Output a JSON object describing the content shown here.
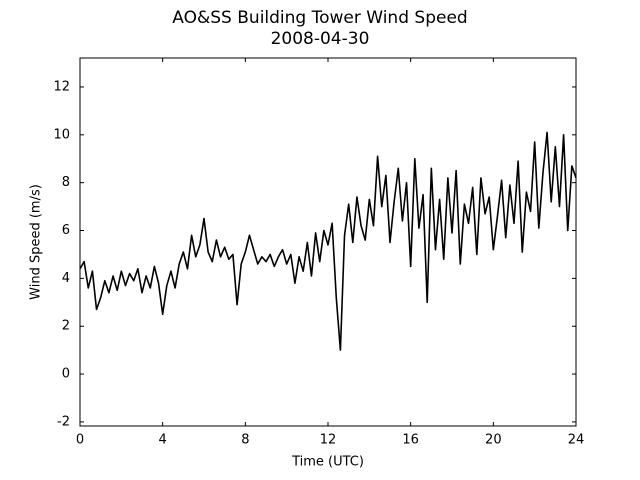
{
  "chart_data": {
    "type": "line",
    "title": "AO&SS Building Tower Wind Speed",
    "subtitle": "2008-04-30",
    "x_label": "Time (UTC)",
    "y_label": "Wind Speed (m/s)",
    "xlim": [
      0,
      24
    ],
    "xticks": [
      0,
      4,
      8,
      12,
      16,
      20,
      24
    ],
    "ylim": [
      -2.17,
      13.21
    ],
    "yticks": [
      -2,
      0,
      2,
      4,
      6,
      8,
      10,
      12
    ],
    "grid": false,
    "x": [
      0,
      0.2,
      0.4,
      0.6,
      0.8,
      1,
      1.2,
      1.4,
      1.6,
      1.8,
      2,
      2.2,
      2.4,
      2.6,
      2.8,
      3,
      3.2,
      3.4,
      3.6,
      3.8,
      4,
      4.2,
      4.4,
      4.6,
      4.8,
      5,
      5.2,
      5.4,
      5.6,
      5.8,
      6,
      6.2,
      6.4,
      6.6,
      6.8,
      7,
      7.2,
      7.4,
      7.6,
      7.8,
      8,
      8.2,
      8.4,
      8.6,
      8.8,
      9,
      9.2,
      9.4,
      9.6,
      9.8,
      10,
      10.2,
      10.4,
      10.6,
      10.8,
      11,
      11.2,
      11.4,
      11.6,
      11.8,
      12,
      12.2,
      12.4,
      12.6,
      12.8,
      13,
      13.2,
      13.4,
      13.6,
      13.8,
      14,
      14.2,
      14.4,
      14.6,
      14.8,
      15,
      15.2,
      15.4,
      15.6,
      15.8,
      16,
      16.2,
      16.4,
      16.6,
      16.8,
      17,
      17.2,
      17.4,
      17.6,
      17.8,
      18,
      18.2,
      18.4,
      18.6,
      18.8,
      19,
      19.2,
      19.4,
      19.6,
      19.8,
      20,
      20.2,
      20.4,
      20.6,
      20.8,
      21,
      21.2,
      21.4,
      21.6,
      21.8,
      22,
      22.2,
      22.4,
      22.6,
      22.8,
      23,
      23.2,
      23.4,
      23.6,
      23.8,
      24
    ],
    "series": [
      {
        "color": "#000000",
        "values": [
          4.4,
          4.7,
          3.6,
          4.3,
          2.7,
          3.2,
          3.9,
          3.4,
          4.1,
          3.5,
          4.3,
          3.7,
          4.2,
          3.9,
          4.4,
          3.4,
          4.1,
          3.6,
          4.5,
          3.8,
          2.5,
          3.7,
          4.3,
          3.6,
          4.6,
          5.1,
          4.4,
          5.8,
          4.9,
          5.4,
          6.5,
          5.1,
          4.7,
          5.6,
          4.9,
          5.3,
          4.8,
          5.0,
          2.9,
          4.6,
          5.1,
          5.8,
          5.2,
          4.6,
          4.9,
          4.7,
          5.0,
          4.5,
          4.9,
          5.2,
          4.6,
          5.0,
          3.8,
          4.9,
          4.3,
          5.5,
          4.1,
          5.9,
          4.7,
          6.0,
          5.4,
          6.3,
          3.2,
          1.0,
          5.8,
          7.1,
          5.5,
          7.4,
          6.2,
          5.6,
          7.3,
          6.2,
          9.1,
          7.0,
          8.3,
          5.5,
          7.2,
          8.6,
          6.4,
          8.0,
          4.5,
          9.0,
          6.1,
          7.5,
          3.0,
          8.6,
          5.2,
          7.3,
          4.8,
          8.2,
          5.9,
          8.5,
          4.6,
          7.1,
          6.3,
          7.8,
          5.0,
          8.2,
          6.7,
          7.4,
          5.2,
          6.6,
          8.1,
          5.7,
          7.9,
          6.3,
          8.9,
          5.1,
          7.6,
          6.8,
          9.7,
          6.1,
          8.4,
          10.1,
          7.2,
          9.5,
          7.0,
          10.0,
          6.0,
          8.7,
          8.2
        ]
      }
    ]
  }
}
